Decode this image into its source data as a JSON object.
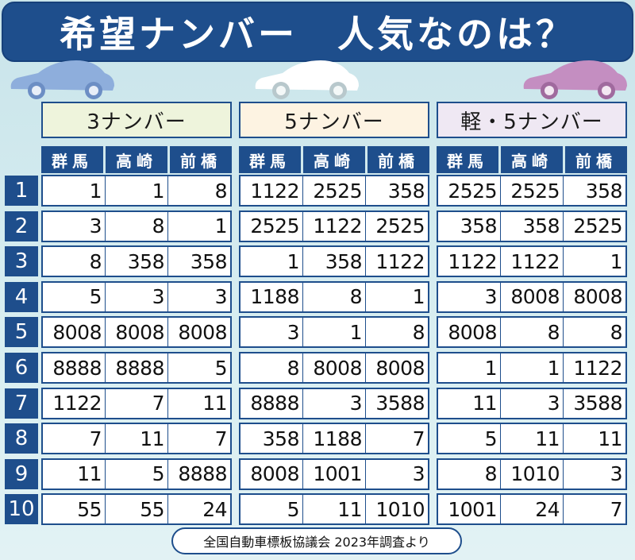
{
  "title": "希望ナンバー　人気なのは？",
  "colors": {
    "navy": "#1e4e8c",
    "group_backgrounds": [
      "#eef4dc",
      "#fdf3e2",
      "#efe8f3"
    ],
    "car_colors": [
      "#8eaedc",
      "#ffffff",
      "#c48ec1"
    ]
  },
  "groups": [
    {
      "label": "3ナンバー"
    },
    {
      "label": "5ナンバー"
    },
    {
      "label": "軽・5ナンバー"
    }
  ],
  "cities": [
    "群馬",
    "高崎",
    "前橋"
  ],
  "ranks": [
    "1",
    "2",
    "3",
    "4",
    "5",
    "6",
    "7",
    "8",
    "9",
    "10"
  ],
  "rows": [
    [
      [
        "1",
        "1",
        "8"
      ],
      [
        "1122",
        "2525",
        "358"
      ],
      [
        "2525",
        "2525",
        "358"
      ]
    ],
    [
      [
        "3",
        "8",
        "1"
      ],
      [
        "2525",
        "1122",
        "2525"
      ],
      [
        "358",
        "358",
        "2525"
      ]
    ],
    [
      [
        "8",
        "358",
        "358"
      ],
      [
        "1",
        "358",
        "1122"
      ],
      [
        "1122",
        "1122",
        "1"
      ]
    ],
    [
      [
        "5",
        "3",
        "3"
      ],
      [
        "1188",
        "8",
        "1"
      ],
      [
        "3",
        "8008",
        "8008"
      ]
    ],
    [
      [
        "8008",
        "8008",
        "8008"
      ],
      [
        "3",
        "1",
        "8"
      ],
      [
        "8008",
        "8",
        "8"
      ]
    ],
    [
      [
        "8888",
        "8888",
        "5"
      ],
      [
        "8",
        "8008",
        "8008"
      ],
      [
        "1",
        "1",
        "1122"
      ]
    ],
    [
      [
        "1122",
        "7",
        "11"
      ],
      [
        "8888",
        "3",
        "3588"
      ],
      [
        "11",
        "3",
        "3588"
      ]
    ],
    [
      [
        "7",
        "11",
        "7"
      ],
      [
        "358",
        "1188",
        "7"
      ],
      [
        "5",
        "11",
        "11"
      ]
    ],
    [
      [
        "11",
        "5",
        "8888"
      ],
      [
        "8008",
        "1001",
        "3"
      ],
      [
        "8",
        "1010",
        "3"
      ]
    ],
    [
      [
        "55",
        "55",
        "24"
      ],
      [
        "5",
        "11",
        "1010"
      ],
      [
        "1001",
        "24",
        "7"
      ]
    ]
  ],
  "source": "全国自動車標板協議会  2023年調査より"
}
